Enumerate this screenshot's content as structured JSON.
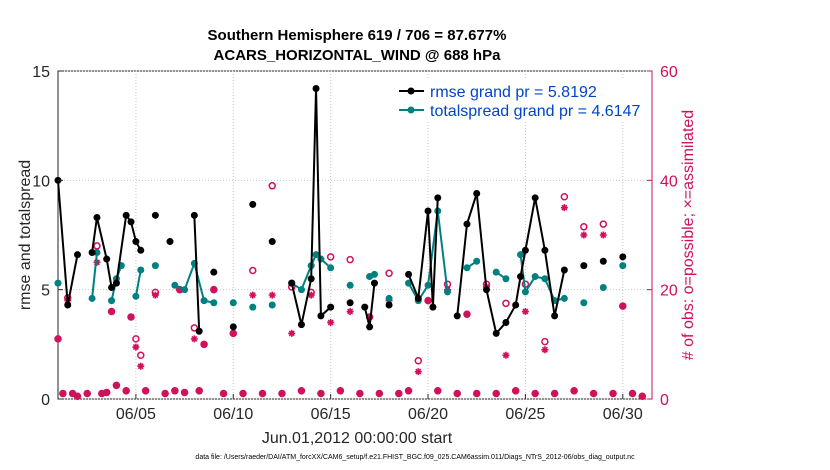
{
  "chart_data": {
    "type": "line",
    "title": "Southern Hemisphere 619 / 706 = 87.677%",
    "subtitle": "ACARS_HORIZONTAL_WIND @ 688 hPa",
    "xlabel": "Jun.01,2012 00:00:00 start",
    "ylabel_left": "rmse and totalspread",
    "ylabel_right": "# of obs: o=possible; ×=assimilated",
    "xlim": [
      1,
      31.5
    ],
    "ylim_left": [
      0,
      15
    ],
    "ylim_right": [
      0,
      60
    ],
    "x_tick_labels": [
      "06/05",
      "06/10",
      "06/15",
      "06/20",
      "06/25",
      "06/30"
    ],
    "x_ticks": [
      5,
      10,
      15,
      20,
      25,
      30
    ],
    "y_ticks_left": [
      "0",
      "5",
      "10",
      "15"
    ],
    "y_ticks_right": [
      "0",
      "20",
      "40",
      "60"
    ],
    "grid": true,
    "footnote": "data file: /Users/raeder/DAI/ATM_forcXX/CAM6_setup/f.e21.FHIST_BGC.f09_025.CAM6assim.011/Diags_NTrS_2012-06/obs_diag_output.nc",
    "legend": [
      {
        "label": "rmse grand pr = 5.8192",
        "color": "#000000"
      },
      {
        "label": "totalspread grand pr = 4.6147",
        "color": "#008080"
      }
    ],
    "colors": {
      "rmse": "#000000",
      "spread": "#008080",
      "obs": "#d0105a",
      "legend_text": "#0044cc",
      "right_axis": "#d0105a"
    },
    "series": [
      {
        "name": "rmse",
        "axis": "left",
        "points": [
          [
            1.0,
            10.0
          ],
          [
            1.5,
            4.3
          ],
          [
            2.0,
            6.6
          ],
          [
            2.75,
            6.7
          ],
          [
            3.0,
            8.3
          ],
          [
            3.5,
            6.4
          ],
          [
            3.75,
            5.1
          ],
          [
            4.0,
            5.3
          ],
          [
            4.5,
            8.4
          ],
          [
            4.75,
            8.1
          ],
          [
            5.0,
            7.2
          ],
          [
            5.25,
            6.8
          ],
          [
            6.0,
            8.4
          ],
          [
            6.75,
            7.2
          ],
          [
            8.0,
            8.4
          ],
          [
            8.25,
            3.1
          ],
          [
            9.0,
            5.8
          ],
          [
            10.0,
            3.3
          ],
          [
            11.0,
            8.9
          ],
          [
            12.0,
            7.2
          ],
          [
            13.0,
            5.3
          ],
          [
            13.5,
            3.4
          ],
          [
            14.0,
            5.5
          ],
          [
            14.25,
            14.2
          ],
          [
            14.5,
            3.8
          ],
          [
            15.0,
            4.2
          ],
          [
            16.0,
            4.4
          ],
          [
            16.75,
            4.2
          ],
          [
            17.0,
            3.3
          ],
          [
            17.25,
            5.3
          ],
          [
            18.0,
            4.3
          ],
          [
            19.0,
            5.7
          ],
          [
            19.5,
            4.6
          ],
          [
            20.0,
            8.6
          ],
          [
            20.25,
            4.2
          ],
          [
            20.5,
            9.2
          ],
          [
            21.5,
            3.8
          ],
          [
            22.0,
            8.0
          ],
          [
            22.5,
            9.4
          ],
          [
            23.0,
            5.0
          ],
          [
            23.5,
            3.0
          ],
          [
            24.0,
            3.5
          ],
          [
            24.5,
            4.3
          ],
          [
            24.75,
            5.6
          ],
          [
            25.0,
            6.8
          ],
          [
            25.5,
            9.2
          ],
          [
            26.0,
            6.8
          ],
          [
            26.5,
            3.8
          ],
          [
            27.0,
            5.9
          ],
          [
            28.0,
            6.1
          ],
          [
            29.0,
            6.3
          ],
          [
            30.0,
            6.5
          ]
        ]
      },
      {
        "name": "totalspread",
        "axis": "left",
        "points": [
          [
            1.0,
            5.3
          ],
          [
            2.75,
            4.6
          ],
          [
            3.0,
            6.7
          ],
          [
            3.75,
            4.5
          ],
          [
            4.0,
            5.5
          ],
          [
            4.25,
            6.1
          ],
          [
            5.0,
            4.7
          ],
          [
            5.25,
            5.9
          ],
          [
            6.0,
            6.1
          ],
          [
            7.0,
            5.2
          ],
          [
            7.5,
            5.0
          ],
          [
            8.0,
            6.2
          ],
          [
            8.5,
            4.5
          ],
          [
            9.0,
            4.4
          ],
          [
            10.0,
            4.4
          ],
          [
            11.0,
            4.2
          ],
          [
            12.0,
            4.3
          ],
          [
            13.0,
            5.3
          ],
          [
            13.5,
            5.0
          ],
          [
            14.0,
            6.1
          ],
          [
            14.25,
            6.6
          ],
          [
            14.5,
            6.4
          ],
          [
            15.0,
            6.0
          ],
          [
            16.0,
            5.2
          ],
          [
            17.0,
            5.6
          ],
          [
            17.25,
            5.7
          ],
          [
            18.0,
            4.6
          ],
          [
            19.0,
            5.3
          ],
          [
            19.5,
            4.5
          ],
          [
            20.0,
            5.2
          ],
          [
            20.5,
            8.6
          ],
          [
            21.0,
            4.9
          ],
          [
            22.0,
            6.0
          ],
          [
            22.5,
            6.3
          ],
          [
            23.5,
            5.8
          ],
          [
            24.0,
            5.5
          ],
          [
            24.75,
            6.6
          ],
          [
            25.0,
            4.9
          ],
          [
            25.5,
            5.6
          ],
          [
            26.0,
            5.5
          ],
          [
            26.5,
            4.5
          ],
          [
            27.0,
            4.6
          ],
          [
            28.0,
            4.4
          ],
          [
            29.0,
            5.1
          ],
          [
            30.0,
            6.1
          ]
        ]
      },
      {
        "name": "obs possible",
        "axis": "right",
        "points": [
          [
            1.0,
            11.0
          ],
          [
            1.25,
            1.0
          ],
          [
            1.5,
            18.5
          ],
          [
            1.75,
            1.0
          ],
          [
            2.0,
            0.5
          ],
          [
            2.5,
            1.0
          ],
          [
            3.0,
            28.0
          ],
          [
            3.25,
            1.0
          ],
          [
            3.5,
            1.2
          ],
          [
            3.75,
            16.0
          ],
          [
            4.0,
            2.5
          ],
          [
            4.5,
            1.5
          ],
          [
            4.75,
            15.0
          ],
          [
            5.0,
            11.0
          ],
          [
            5.25,
            8.0
          ],
          [
            5.5,
            1.5
          ],
          [
            6.0,
            19.5
          ],
          [
            6.5,
            1.0
          ],
          [
            7.0,
            1.5
          ],
          [
            7.25,
            20.0
          ],
          [
            7.5,
            1.2
          ],
          [
            8.0,
            13.0
          ],
          [
            8.25,
            1.5
          ],
          [
            8.5,
            10.0
          ],
          [
            9.0,
            20.0
          ],
          [
            9.5,
            1.0
          ],
          [
            10.0,
            12.0
          ],
          [
            10.5,
            1.0
          ],
          [
            11.0,
            23.5
          ],
          [
            11.5,
            1.0
          ],
          [
            12.0,
            39.0
          ],
          [
            12.5,
            1.0
          ],
          [
            13.0,
            20.5
          ],
          [
            13.5,
            1.5
          ],
          [
            14.0,
            19.5
          ],
          [
            14.5,
            1.0
          ],
          [
            15.0,
            26.0
          ],
          [
            15.5,
            1.5
          ],
          [
            16.0,
            25.5
          ],
          [
            16.5,
            1.0
          ],
          [
            17.0,
            15.0
          ],
          [
            17.5,
            1.0
          ],
          [
            18.0,
            23.0
          ],
          [
            18.5,
            1.0
          ],
          [
            19.0,
            1.5
          ],
          [
            19.5,
            7.0
          ],
          [
            20.0,
            18.0
          ],
          [
            20.5,
            1.5
          ],
          [
            21.0,
            21.0
          ],
          [
            21.5,
            1.0
          ],
          [
            22.0,
            15.5
          ],
          [
            22.5,
            1.0
          ],
          [
            23.0,
            21.0
          ],
          [
            23.5,
            1.0
          ],
          [
            24.0,
            17.5
          ],
          [
            24.5,
            1.5
          ],
          [
            25.0,
            21.0
          ],
          [
            25.5,
            1.0
          ],
          [
            26.0,
            10.5
          ],
          [
            26.5,
            1.0
          ],
          [
            27.0,
            37.0
          ],
          [
            27.5,
            1.5
          ],
          [
            28.0,
            31.5
          ],
          [
            28.5,
            1.0
          ],
          [
            29.0,
            32.0
          ],
          [
            29.5,
            1.0
          ],
          [
            30.0,
            17.0
          ],
          [
            30.5,
            1.0
          ],
          [
            31.0,
            0.5
          ]
        ]
      },
      {
        "name": "obs assimilated",
        "axis": "right",
        "points": [
          [
            1.0,
            11.0
          ],
          [
            1.25,
            1.0
          ],
          [
            1.5,
            18.0
          ],
          [
            1.75,
            1.0
          ],
          [
            2.0,
            0.5
          ],
          [
            2.5,
            1.0
          ],
          [
            3.0,
            25.0
          ],
          [
            3.25,
            1.0
          ],
          [
            3.5,
            1.2
          ],
          [
            3.75,
            16.0
          ],
          [
            4.0,
            2.5
          ],
          [
            4.5,
            1.5
          ],
          [
            4.75,
            15.0
          ],
          [
            5.0,
            9.5
          ],
          [
            5.25,
            6.0
          ],
          [
            5.5,
            1.5
          ],
          [
            6.0,
            19.0
          ],
          [
            6.5,
            1.0
          ],
          [
            7.0,
            1.5
          ],
          [
            7.25,
            20.0
          ],
          [
            7.5,
            1.2
          ],
          [
            8.0,
            11.0
          ],
          [
            8.25,
            1.5
          ],
          [
            8.5,
            10.0
          ],
          [
            9.0,
            20.0
          ],
          [
            9.5,
            1.0
          ],
          [
            10.0,
            12.0
          ],
          [
            10.5,
            1.0
          ],
          [
            11.0,
            19.0
          ],
          [
            11.5,
            1.0
          ],
          [
            12.0,
            19.0
          ],
          [
            12.5,
            1.0
          ],
          [
            13.0,
            12.0
          ],
          [
            13.5,
            1.5
          ],
          [
            14.0,
            19.0
          ],
          [
            14.5,
            1.0
          ],
          [
            15.0,
            14.0
          ],
          [
            15.5,
            1.5
          ],
          [
            16.0,
            16.0
          ],
          [
            16.5,
            1.0
          ],
          [
            17.0,
            15.0
          ],
          [
            17.5,
            1.0
          ],
          [
            18.0,
            18.0
          ],
          [
            18.5,
            1.0
          ],
          [
            19.0,
            1.5
          ],
          [
            19.5,
            5.0
          ],
          [
            20.0,
            18.0
          ],
          [
            20.5,
            1.5
          ],
          [
            21.0,
            20.0
          ],
          [
            21.5,
            1.0
          ],
          [
            22.0,
            15.5
          ],
          [
            22.5,
            1.0
          ],
          [
            23.0,
            20.5
          ],
          [
            23.5,
            1.0
          ],
          [
            24.0,
            8.0
          ],
          [
            24.5,
            1.5
          ],
          [
            25.0,
            16.0
          ],
          [
            25.5,
            1.0
          ],
          [
            26.0,
            9.0
          ],
          [
            26.5,
            1.0
          ],
          [
            27.0,
            35.0
          ],
          [
            27.5,
            1.5
          ],
          [
            28.0,
            30.0
          ],
          [
            28.5,
            1.0
          ],
          [
            29.0,
            30.0
          ],
          [
            29.5,
            1.0
          ],
          [
            30.0,
            17.0
          ],
          [
            30.5,
            1.0
          ],
          [
            31.0,
            0.5
          ]
        ]
      }
    ]
  }
}
